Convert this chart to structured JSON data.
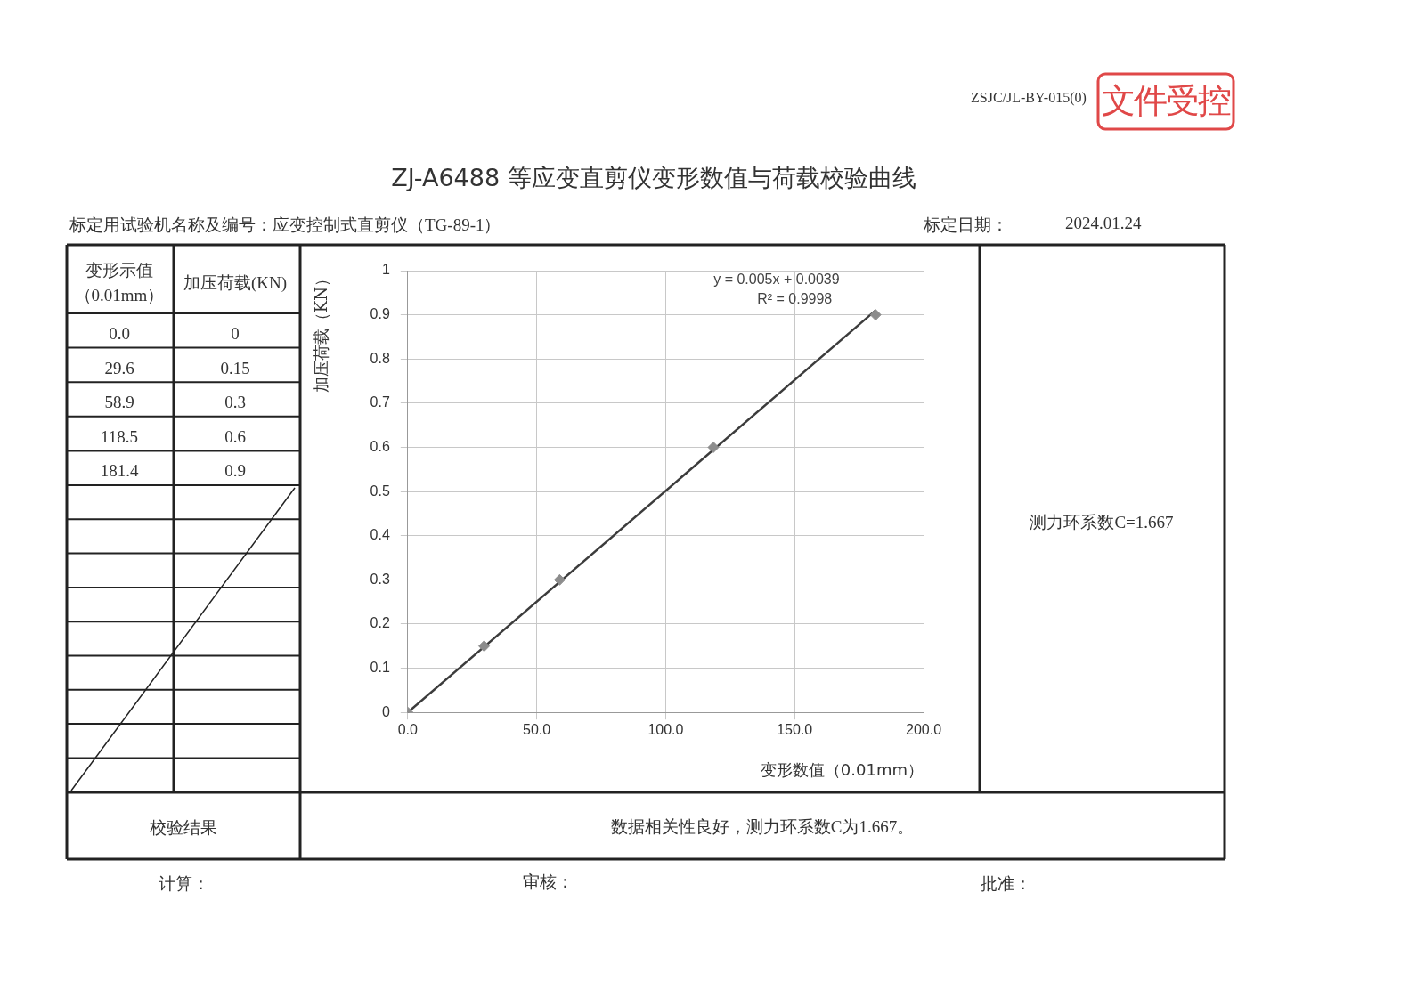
{
  "chart_data": {
    "type": "scatter",
    "title": "ZJ-A6488 等应变直剪仪变形数值与荷载校验曲线",
    "xlabel": "变形数值（0.01mm）",
    "ylabel": "加压荷载（KN）",
    "series": [
      {
        "type": "scatter",
        "color": "#8c8c8c",
        "x": [
          0,
          29.6,
          58.9,
          118.5,
          181.4
        ],
        "values": [
          0,
          0.15,
          0.3,
          0.6,
          0.9
        ],
        "marker": "diamond"
      },
      {
        "type": "line",
        "color": "#3c3c3c",
        "x": [
          0,
          181.4
        ],
        "values": [
          0,
          0.91
        ],
        "marker": "none",
        "line_style": "solid"
      }
    ],
    "xlim": [
      0,
      200
    ],
    "xticks": [
      {
        "value": 0,
        "label": "0.0"
      },
      {
        "value": 50,
        "label": "50.0"
      },
      {
        "value": 100,
        "label": "100.0"
      },
      {
        "value": 150,
        "label": "150.0"
      },
      {
        "value": 200,
        "label": "200.0"
      }
    ],
    "ylim": [
      0,
      1
    ],
    "yticks": [
      0,
      0.1,
      0.2,
      0.3,
      0.4,
      0.5,
      0.6,
      0.7,
      0.8,
      0.9,
      1
    ],
    "grid": true,
    "legend": false,
    "annotations": [
      "ZSJC/JL-BY-015(0)",
      "文件受控",
      "标定用试验机名称及编号：应变控制式直剪仪（TG-89-1）",
      "标定日期：",
      "2024.01.24",
      "变形示值（0.01mm）",
      "加压荷载(KN)",
      "测力环系数C=1.667",
      "校验结果",
      "数据相关性良好，测力环系数C为1.667。",
      "计算：",
      "审核：",
      "批准：",
      "y = 0.005x + 0.0039",
      "R² = 0.9998",
      "0.0",
      "29.6",
      "58.9",
      "118.5",
      "181.4",
      "0",
      "0.15",
      "0.3",
      "0.6",
      "0.9"
    ]
  }
}
